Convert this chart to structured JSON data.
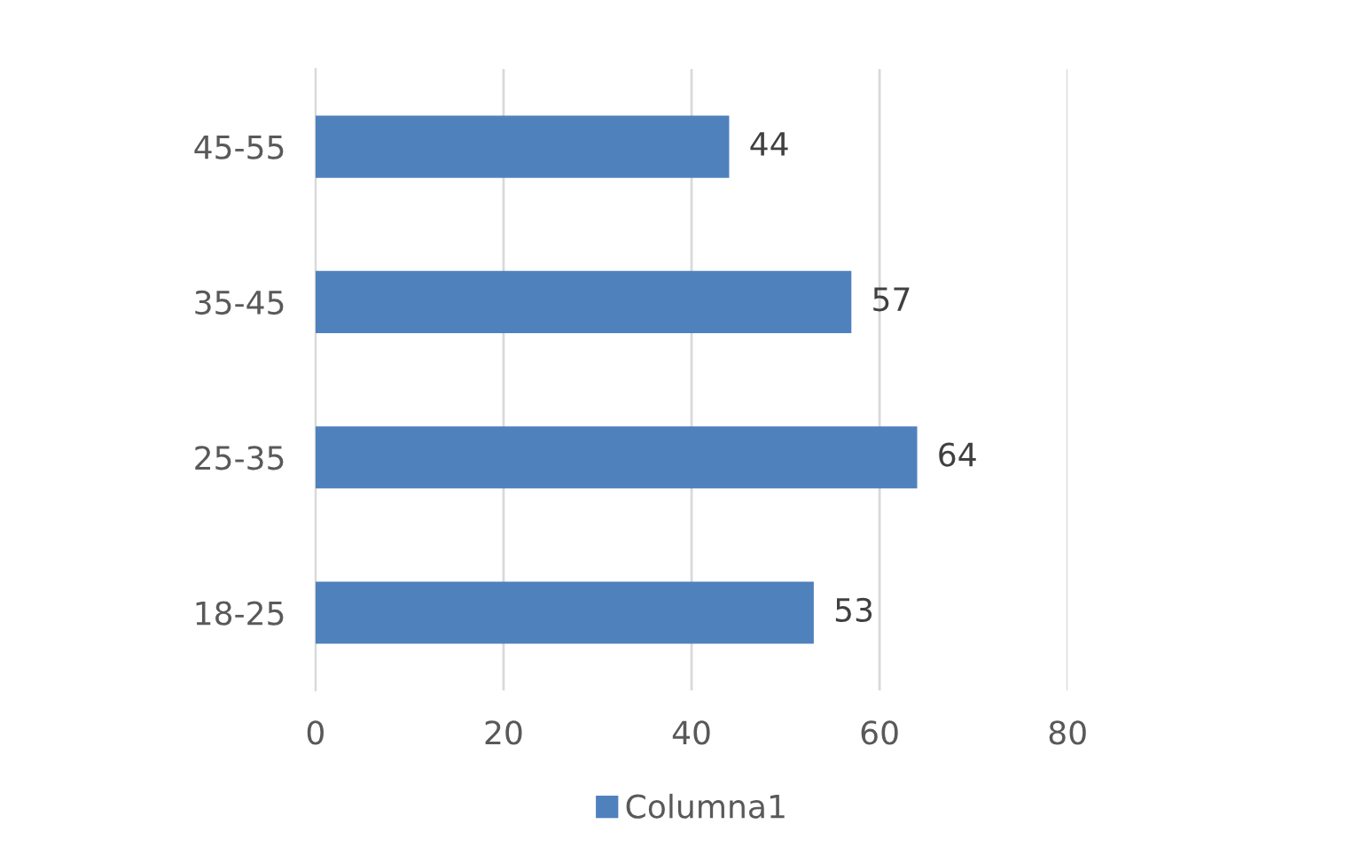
{
  "chart_data": {
    "type": "bar",
    "orientation": "horizontal",
    "categories": [
      "45-55",
      "35-45",
      "25-35",
      "18-25"
    ],
    "series": [
      {
        "name": "Columna1",
        "color": "#4f81bd",
        "values": [
          44,
          57,
          64,
          53
        ]
      }
    ],
    "xlim": [
      0,
      80
    ],
    "xticks": [
      0,
      20,
      40,
      60,
      80
    ],
    "grid": "x",
    "data_labels": true,
    "legend": "bottom"
  }
}
